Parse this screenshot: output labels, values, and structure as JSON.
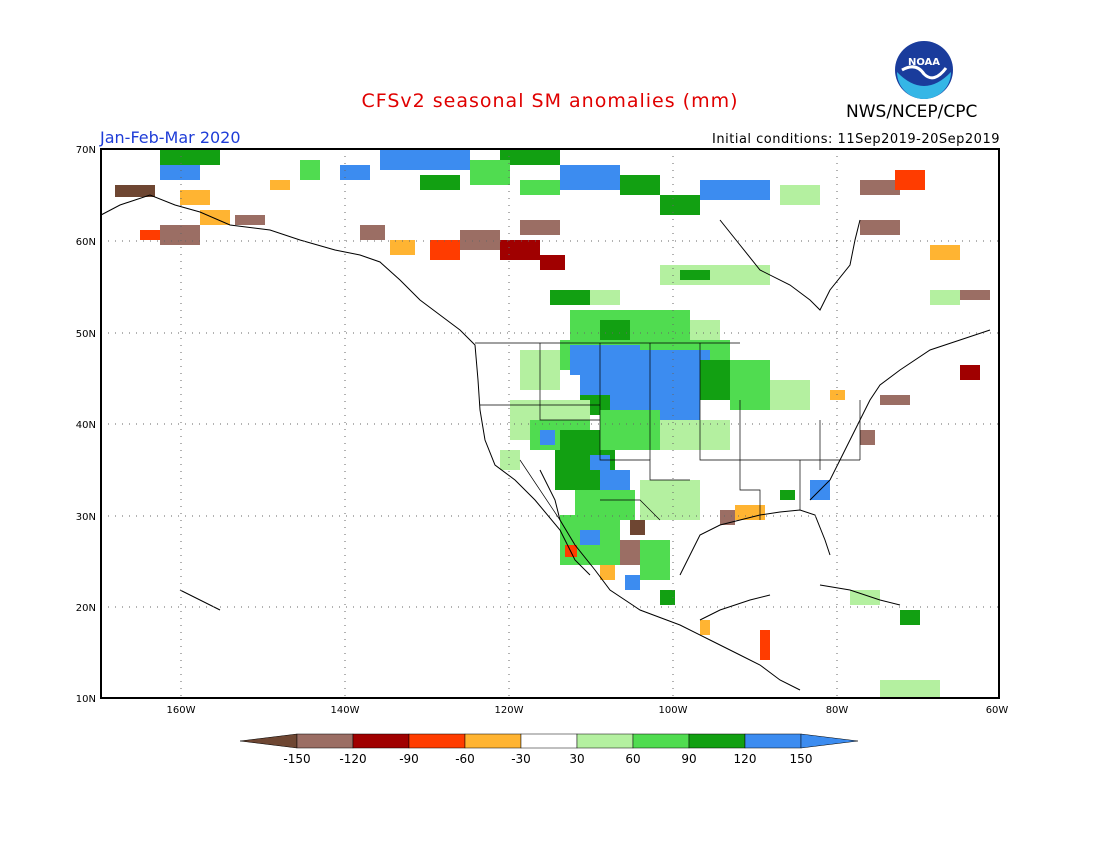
{
  "header": {
    "title": "CFSv2 seasonal SM anomalies (mm)",
    "period": "Jan-Feb-Mar 2020",
    "initial_conditions": "Initial conditions: 11Sep2019-20Sep2019",
    "agency": "NWS/NCEP/CPC",
    "logo_text": "NOAA"
  },
  "map": {
    "lon_range": [
      -172,
      -60
    ],
    "lat_range": [
      10,
      70
    ],
    "lat_labels": [
      "70N",
      "60N",
      "50N",
      "40N",
      "30N",
      "20N",
      "10N"
    ],
    "lon_labels": [
      "160W",
      "140W",
      "120W",
      "100W",
      "80W",
      "60W"
    ],
    "grid": true,
    "background_color": "#ffffff"
  },
  "legend": {
    "labels": [
      "-150",
      "-120",
      "-90",
      "-60",
      "-30",
      "30",
      "60",
      "90",
      "120",
      "150"
    ],
    "colors": [
      "#6e4632",
      "#9b6e64",
      "#a00000",
      "#ff3c00",
      "#ffb432",
      "#ffffff",
      "#b4f0a0",
      "#50dc50",
      "#12a012",
      "#3c8cf0",
      "#3c8cf0"
    ]
  },
  "anomaly_colors": {
    "dry_extreme": "#6e4632",
    "dry_very": "#9b6e64",
    "dry_strong": "#a00000",
    "dry_moderate": "#ff3c00",
    "dry_light": "#ffb432",
    "wet_light": "#b4f0a0",
    "wet_moderate": "#50dc50",
    "wet_strong": "#12a012",
    "wet_very": "#3c8cf0"
  }
}
